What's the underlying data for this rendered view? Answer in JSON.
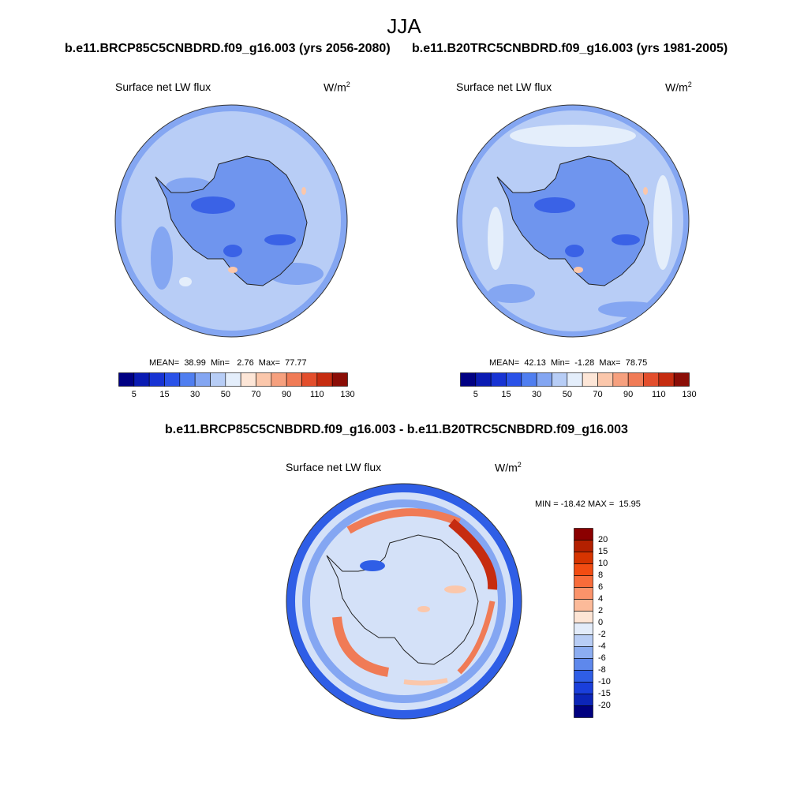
{
  "page": {
    "title": "JJA"
  },
  "panels": {
    "rcp85": {
      "case_title": "b.e11.BRCP85C5CNBDRD.f09_g16.003 (yrs 2056-2080)",
      "variable": "Surface net LW flux",
      "units_base": "W/m",
      "units_exp": "2",
      "stats": "MEAN=  38.99  Min=   2.76  Max=  77.77",
      "mean": 38.99,
      "min": 2.76,
      "max": 77.77
    },
    "hist": {
      "case_title": "b.e11.B20TRC5CNBDRD.f09_g16.003 (yrs 1981-2005)",
      "variable": "Surface net LW flux",
      "units_base": "W/m",
      "units_exp": "2",
      "stats": "MEAN=  42.13  Min=  -1.28  Max=  78.75",
      "mean": 42.13,
      "min": -1.28,
      "max": 78.75
    },
    "diff": {
      "case_title": "b.e11.BRCP85C5CNBDRD.f09_g16.003 - b.e11.B20TRC5CNBDRD.f09_g16.003",
      "variable": "Surface net LW flux",
      "units_base": "W/m",
      "units_exp": "2",
      "stats": "MIN = -18.42 MAX =  15.95",
      "min": -18.42,
      "max": 15.95
    }
  },
  "colorbars": {
    "abs": {
      "colors": [
        "#000083",
        "#0a1bb3",
        "#1733d3",
        "#2a52e8",
        "#4f7ef0",
        "#84a6f2",
        "#b7cdf6",
        "#e4eefb",
        "#fde6d7",
        "#fbc7ab",
        "#f6a07e",
        "#f07b56",
        "#e34e2c",
        "#c62c10",
        "#8b0d06"
      ],
      "tick_labels": [
        "5",
        "15",
        "30",
        "50",
        "70",
        "90",
        "110",
        "130"
      ]
    },
    "diff": {
      "colors": [
        "#8b0000",
        "#b32000",
        "#d63400",
        "#f24c12",
        "#f86c3a",
        "#fb936a",
        "#fcba99",
        "#fde5d5",
        "#e3ecfa",
        "#b8cdf5",
        "#8cadf1",
        "#5e88ec",
        "#2f5ee6",
        "#1a3fdb",
        "#0c25b8",
        "#000080"
      ],
      "tick_labels": [
        "20",
        "15",
        "10",
        "8",
        "6",
        "4",
        "2",
        "0",
        "-2",
        "-4",
        "-6",
        "-8",
        "-10",
        "-15",
        "-20"
      ]
    }
  },
  "map_colors": {
    "ocean_abs": "#b8cdf6",
    "ocean_light": "#e4eefb",
    "ring_abs": "#84a6f2",
    "land_abs": "#6f95ee",
    "land_dark": "#3a62e6",
    "warm": "#fbc7ab",
    "diff_ocean": "#d4e1f8",
    "diff_blue": "#2f5ee6",
    "diff_red": "#f07b56",
    "diff_darkred": "#c62c10",
    "coast": "#222222"
  }
}
